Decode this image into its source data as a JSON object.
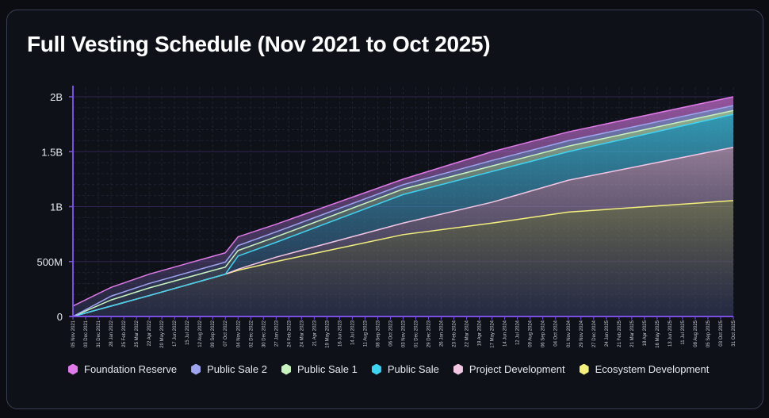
{
  "chart_data": {
    "type": "area",
    "stacked": true,
    "title": "Full Vesting Schedule (Nov 2021 to Oct 2025)",
    "xlabel": "",
    "ylabel": "",
    "ylim": [
      0,
      2000000000
    ],
    "y_ticks": [
      {
        "value": 0,
        "label": "0"
      },
      {
        "value": 500000000,
        "label": "500M"
      },
      {
        "value": 1000000000,
        "label": "1B"
      },
      {
        "value": 1500000000,
        "label": "1.5B"
      },
      {
        "value": 2000000000,
        "label": "2B"
      }
    ],
    "grid": true,
    "legend": "bottom",
    "categories": [
      "05 Nov 2021",
      "03 Dec 2021",
      "31 Dec 2021",
      "28 Jan 2022",
      "25 Feb 2022",
      "25 Mar 2022",
      "22 Apr 2022",
      "20 May 2022",
      "17 Jun 2022",
      "15 Jul 2022",
      "12 Aug 2022",
      "09 Sep 2022",
      "07 Oct 2022",
      "04 Nov 2022",
      "02 Dec 2022",
      "30 Dec 2022",
      "27 Jan 2023",
      "24 Feb 2023",
      "24 Mar 2023",
      "21 Apr 2023",
      "19 May 2023",
      "16 Jun 2023",
      "14 Jul 2023",
      "11 Aug 2023",
      "08 Sep 2023",
      "06 Oct 2023",
      "03 Nov 2023",
      "01 Dec 2023",
      "29 Dec 2023",
      "26 Jan 2024",
      "23 Feb 2024",
      "22 Mar 2024",
      "19 Apr 2024",
      "17 May 2024",
      "14 Jun 2024",
      "12 Jul 2024",
      "09 Aug 2024",
      "06 Sep 2024",
      "04 Oct 2024",
      "01 Nov 2024",
      "29 Nov 2024",
      "27 Dec 2024",
      "24 Jan 2025",
      "21 Feb 2025",
      "21 Mar 2025",
      "18 Apr 2025",
      "16 May 2025",
      "13 Jun 2025",
      "11 Jul 2025",
      "08 Aug 2025",
      "05 Sep 2025",
      "03 Oct 2025",
      "31 Oct 2025"
    ],
    "x": [
      "05 Nov 2021",
      "28 Jan 2022",
      "22 Apr 2022",
      "07 Oct 2022",
      "04 Nov 2022",
      "27 Jan 2023",
      "03 Nov 2023",
      "17 May 2024",
      "01 Nov 2024",
      "31 Oct 2025"
    ],
    "value_unit": "millions",
    "series": [
      {
        "name": "Ecosystem Development",
        "color": "#f5f07e",
        "values": [
          0,
          95,
          190,
          385,
          420,
          500,
          745,
          850,
          950,
          1055
        ]
      },
      {
        "name": "Project Development",
        "color": "#f3c6e4",
        "values": [
          0,
          0,
          0,
          0,
          10,
          40,
          105,
          190,
          290,
          485
        ]
      },
      {
        "name": "Public Sale",
        "color": "#3fd3f2",
        "values": [
          0,
          0,
          0,
          0,
          120,
          135,
          260,
          280,
          260,
          300
        ]
      },
      {
        "name": "Public Sale 1",
        "color": "#c8f3bf",
        "values": [
          0,
          55,
          70,
          65,
          50,
          50,
          50,
          50,
          50,
          35
        ]
      },
      {
        "name": "Public Sale 2",
        "color": "#9ea4ee",
        "values": [
          0,
          35,
          40,
          45,
          45,
          45,
          40,
          50,
          50,
          45
        ]
      },
      {
        "name": "Foundation Reserve",
        "color": "#e07ae8",
        "values": [
          95,
          80,
          85,
          85,
          80,
          70,
          50,
          80,
          80,
          80
        ]
      }
    ],
    "legend_order": [
      "Foundation Reserve",
      "Public Sale 2",
      "Public Sale 1",
      "Public Sale",
      "Project Development",
      "Ecosystem Development"
    ]
  }
}
